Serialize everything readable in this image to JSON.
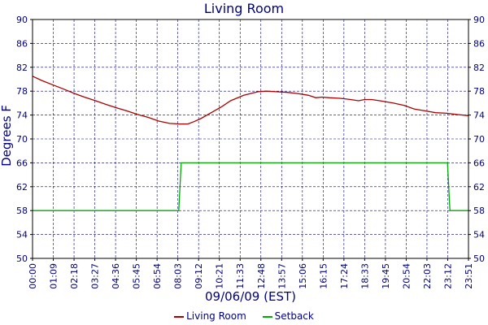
{
  "chart_data": {
    "type": "line",
    "title": "Living Room",
    "xlabel": "09/06/09 (EST)",
    "ylabel": "Degrees F",
    "x_tick_labels": [
      "00:00",
      "01:09",
      "02:18",
      "03:27",
      "04:36",
      "05:45",
      "06:54",
      "08:03",
      "09:12",
      "10:21",
      "11:33",
      "12:48",
      "13:57",
      "15:06",
      "16:15",
      "17:24",
      "18:33",
      "19:45",
      "20:54",
      "22:03",
      "23:12",
      "23:51"
    ],
    "x_range_minutes": [
      0,
      1431
    ],
    "ylim": [
      50,
      90
    ],
    "y_ticks": [
      50,
      54,
      58,
      62,
      66,
      70,
      74,
      78,
      82,
      86,
      90
    ],
    "grid": true,
    "legend_position": "bottom-center",
    "series": [
      {
        "name": "Living Room",
        "color": "#aa0000",
        "points": [
          [
            0,
            80.5
          ],
          [
            30,
            79.8
          ],
          [
            69,
            79.0
          ],
          [
            100,
            78.4
          ],
          [
            138,
            77.6
          ],
          [
            170,
            77.0
          ],
          [
            207,
            76.4
          ],
          [
            240,
            75.8
          ],
          [
            276,
            75.2
          ],
          [
            310,
            74.7
          ],
          [
            345,
            74.1
          ],
          [
            380,
            73.6
          ],
          [
            414,
            73.0
          ],
          [
            450,
            72.6
          ],
          [
            483,
            72.5
          ],
          [
            510,
            72.5
          ],
          [
            530,
            72.9
          ],
          [
            552,
            73.4
          ],
          [
            580,
            74.2
          ],
          [
            621,
            75.4
          ],
          [
            650,
            76.4
          ],
          [
            693,
            77.3
          ],
          [
            740,
            77.9
          ],
          [
            768,
            78.0
          ],
          [
            800,
            77.9
          ],
          [
            837,
            77.8
          ],
          [
            870,
            77.6
          ],
          [
            906,
            77.3
          ],
          [
            930,
            76.9
          ],
          [
            950,
            77.0
          ],
          [
            975,
            76.9
          ],
          [
            1010,
            76.8
          ],
          [
            1044,
            76.6
          ],
          [
            1070,
            76.4
          ],
          [
            1090,
            76.6
          ],
          [
            1113,
            76.6
          ],
          [
            1140,
            76.4
          ],
          [
            1185,
            76.0
          ],
          [
            1220,
            75.6
          ],
          [
            1254,
            75.0
          ],
          [
            1290,
            74.7
          ],
          [
            1323,
            74.4
          ],
          [
            1360,
            74.3
          ],
          [
            1392,
            74.1
          ],
          [
            1431,
            73.9
          ]
        ]
      },
      {
        "name": "Setback",
        "color": "#00aa00",
        "points": [
          [
            0,
            58
          ],
          [
            480,
            58
          ],
          [
            488,
            66
          ],
          [
            1362,
            66
          ],
          [
            1366,
            62
          ],
          [
            1370,
            58
          ],
          [
            1431,
            58
          ]
        ]
      }
    ]
  }
}
